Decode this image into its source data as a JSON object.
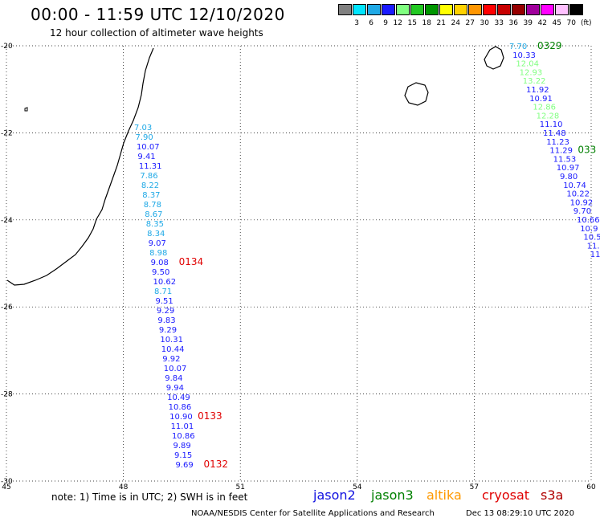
{
  "header": {
    "title": "00:00 - 11:59 UTC 12/10/2020",
    "subtitle": "12 hour collection of altimeter wave heights"
  },
  "color_legend": {
    "unit": "(ft)",
    "items": [
      {
        "label": "3",
        "color": "#808080"
      },
      {
        "label": "6",
        "color": "#00e5ff"
      },
      {
        "label": "9",
        "color": "#1fa9e6"
      },
      {
        "label": "12",
        "color": "#1a1aff"
      },
      {
        "label": "15",
        "color": "#80ff80"
      },
      {
        "label": "18",
        "color": "#22c822"
      },
      {
        "label": "21",
        "color": "#009600"
      },
      {
        "label": "24",
        "color": "#ffff00"
      },
      {
        "label": "27",
        "color": "#ffd200"
      },
      {
        "label": "30",
        "color": "#ff9600"
      },
      {
        "label": "33",
        "color": "#ff0000"
      },
      {
        "label": "36",
        "color": "#c80000"
      },
      {
        "label": "39",
        "color": "#960000"
      },
      {
        "label": "42",
        "color": "#a0009c"
      },
      {
        "label": "45",
        "color": "#ff00ff"
      },
      {
        "label": "70",
        "color": "#ffc0ff"
      },
      {
        "label": "",
        "color": "#000000"
      }
    ]
  },
  "map": {
    "lon_range": [
      45,
      60
    ],
    "lat_range": [
      -30,
      -20
    ],
    "lon_ticks": [
      "45",
      "48",
      "51",
      "54",
      "57",
      "60"
    ],
    "lat_ticks": [
      "-20",
      "-22",
      "-24",
      "-26",
      "-28",
      "-30"
    ],
    "grid": "dotted"
  },
  "passes": [
    {
      "observations": [
        {
          "value": "7.03",
          "color": "#1fa9e6"
        },
        {
          "value": "7.90",
          "color": "#1fa9e6"
        },
        {
          "value": "10.07",
          "color": "#1a1aff"
        },
        {
          "value": "9.41",
          "color": "#1a1aff"
        },
        {
          "value": "11.31",
          "color": "#1a1aff"
        },
        {
          "value": "7.86",
          "color": "#1fa9e6"
        },
        {
          "value": "8.22",
          "color": "#1fa9e6"
        },
        {
          "value": "8.37",
          "color": "#1fa9e6"
        },
        {
          "value": "8.78",
          "color": "#1fa9e6"
        },
        {
          "value": "8.67",
          "color": "#1fa9e6"
        },
        {
          "value": "8.35",
          "color": "#1fa9e6"
        },
        {
          "value": "8.34",
          "color": "#1fa9e6"
        },
        {
          "value": "9.07",
          "color": "#1a1aff"
        },
        {
          "value": "8.98",
          "color": "#1fa9e6"
        },
        {
          "value": "9.08",
          "color": "#1a1aff"
        },
        {
          "value": "9.50",
          "color": "#1a1aff"
        },
        {
          "value": "10.62",
          "color": "#1a1aff"
        },
        {
          "value": "8.71",
          "color": "#1fa9e6"
        },
        {
          "value": "9.51",
          "color": "#1a1aff"
        },
        {
          "value": "9.29",
          "color": "#1a1aff"
        },
        {
          "value": "9.83",
          "color": "#1a1aff"
        },
        {
          "value": "9.29",
          "color": "#1a1aff"
        },
        {
          "value": "10.31",
          "color": "#1a1aff"
        },
        {
          "value": "10.44",
          "color": "#1a1aff"
        },
        {
          "value": "9.92",
          "color": "#1a1aff"
        },
        {
          "value": "10.07",
          "color": "#1a1aff"
        },
        {
          "value": "9.84",
          "color": "#1a1aff"
        },
        {
          "value": "9.94",
          "color": "#1a1aff"
        },
        {
          "value": "10.49",
          "color": "#1a1aff"
        },
        {
          "value": "10.86",
          "color": "#1a1aff"
        },
        {
          "value": "10.90",
          "color": "#1a1aff"
        },
        {
          "value": "11.01",
          "color": "#1a1aff"
        },
        {
          "value": "10.86",
          "color": "#1a1aff"
        },
        {
          "value": "9.89",
          "color": "#1a1aff"
        },
        {
          "value": "9.15",
          "color": "#1a1aff"
        },
        {
          "value": "9.69",
          "color": "#1a1aff"
        }
      ],
      "time_labels": [
        {
          "text": "0134",
          "color": "#e00000",
          "at_obs": 14
        },
        {
          "text": "0133",
          "color": "#e00000",
          "at_obs": 30
        },
        {
          "text": "0132",
          "color": "#e00000",
          "at_obs": 35
        }
      ]
    },
    {
      "observations": [
        {
          "value": "7.70",
          "color": "#1fa9e6"
        },
        {
          "value": "10.33",
          "color": "#1a1aff"
        },
        {
          "value": "12.04",
          "color": "#80ff80"
        },
        {
          "value": "12.93",
          "color": "#80ff80"
        },
        {
          "value": "13.22",
          "color": "#80ff80"
        },
        {
          "value": "11.92",
          "color": "#1a1aff"
        },
        {
          "value": "10.91",
          "color": "#1a1aff"
        },
        {
          "value": "12.86",
          "color": "#80ff80"
        },
        {
          "value": "12.28",
          "color": "#80ff80"
        },
        {
          "value": "11.10",
          "color": "#1a1aff"
        },
        {
          "value": "11.48",
          "color": "#1a1aff"
        },
        {
          "value": "11.23",
          "color": "#1a1aff"
        },
        {
          "value": "11.29",
          "color": "#1a1aff"
        },
        {
          "value": "11.53",
          "color": "#1a1aff"
        },
        {
          "value": "10.97",
          "color": "#1a1aff"
        },
        {
          "value": "9.80",
          "color": "#1a1aff"
        },
        {
          "value": "10.74",
          "color": "#1a1aff"
        },
        {
          "value": "10.22",
          "color": "#1a1aff"
        },
        {
          "value": "10.92",
          "color": "#1a1aff"
        },
        {
          "value": "9.70",
          "color": "#1a1aff"
        },
        {
          "value": "10.66",
          "color": "#1a1aff"
        },
        {
          "value": "10.9",
          "color": "#1a1aff"
        },
        {
          "value": "10.5",
          "color": "#1a1aff"
        },
        {
          "value": "11.",
          "color": "#1a1aff"
        },
        {
          "value": "11",
          "color": "#1a1aff"
        }
      ],
      "time_labels": [
        {
          "text": "0329",
          "color": "#008000",
          "at_obs": 0
        },
        {
          "text": "033",
          "color": "#008000",
          "at_obs": 12
        }
      ]
    }
  ],
  "footer": {
    "note": "note: 1) Time is in UTC; 2) SWH is in feet",
    "satellites": [
      {
        "name": "jason2",
        "color": "#1010e0"
      },
      {
        "name": "jason3",
        "color": "#008000"
      },
      {
        "name": "altika",
        "color": "#ff9900"
      },
      {
        "name": "cryosat",
        "color": "#e00000"
      },
      {
        "name": "s3a",
        "color": "#b00000"
      }
    ],
    "credit": "NOAA/NESDIS Center for Satellite Applications and Research",
    "timestamp": "Dec 13 08:29:10 UTC 2020"
  }
}
